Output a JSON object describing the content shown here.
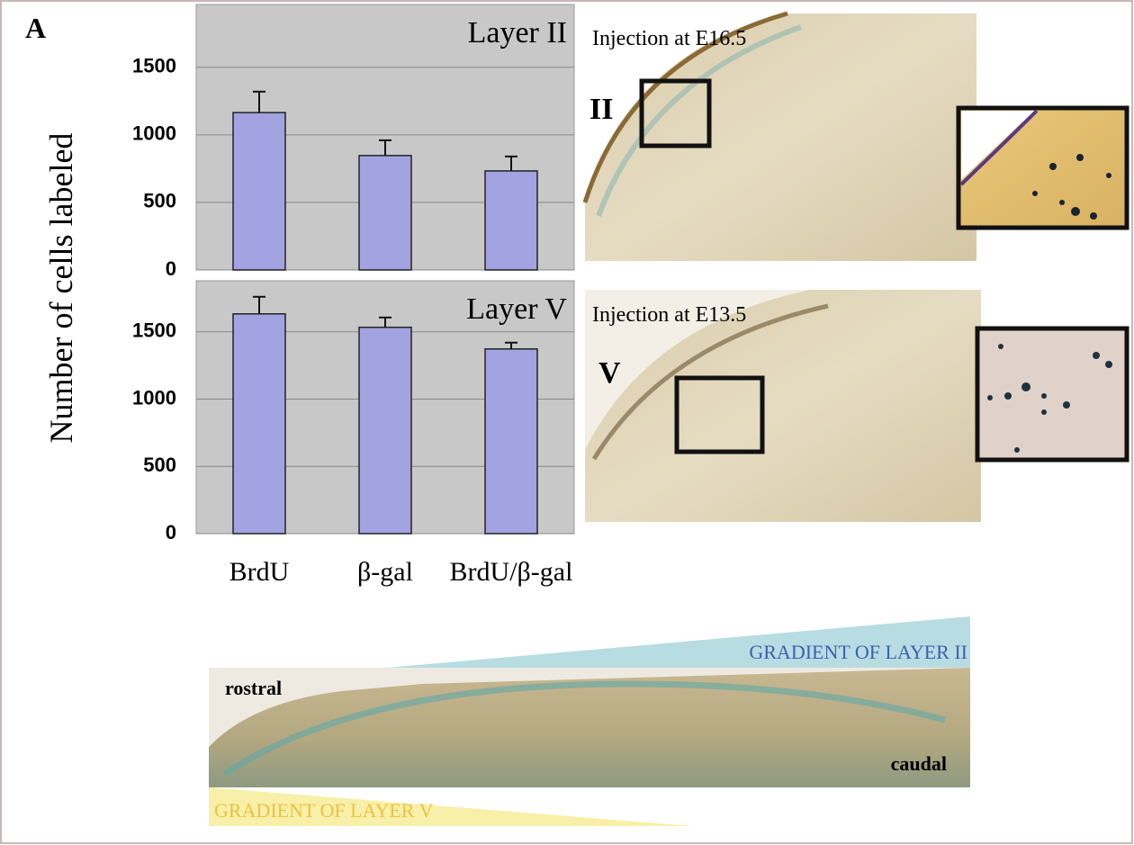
{
  "panel_label": "A",
  "chart_data": [
    {
      "type": "bar",
      "title": "Layer II",
      "y_label": "Number of cells labeled",
      "values": [
        1165,
        847,
        733
      ],
      "errors": [
        155,
        113,
        107
      ],
      "color": "#a3a3e2",
      "ylim": [
        0,
        1965
      ],
      "yticks": [
        0,
        500,
        1000,
        1500
      ],
      "grid": true
    },
    {
      "type": "bar",
      "title": "Layer V",
      "categories": [
        "BrdU",
        "β-gal",
        "BrdU/β-gal"
      ],
      "values": [
        1634,
        1534,
        1373
      ],
      "errors": [
        127,
        73,
        47
      ],
      "color": "#a3a3e2",
      "ylim": [
        0,
        1880
      ],
      "yticks": [
        0,
        500,
        1000,
        1500
      ],
      "grid": true
    }
  ],
  "micrographs": {
    "top": {
      "caption": "Injection at E16.5",
      "layer": "II"
    },
    "middle": {
      "caption": "Injection at E13.5",
      "layer": "V"
    },
    "bottom": {
      "gradient_top": "GRADIENT OF LAYER II",
      "gradient_bottom": "GRADIENT OF LAYER V",
      "left": "rostral",
      "right": "caudal"
    }
  }
}
